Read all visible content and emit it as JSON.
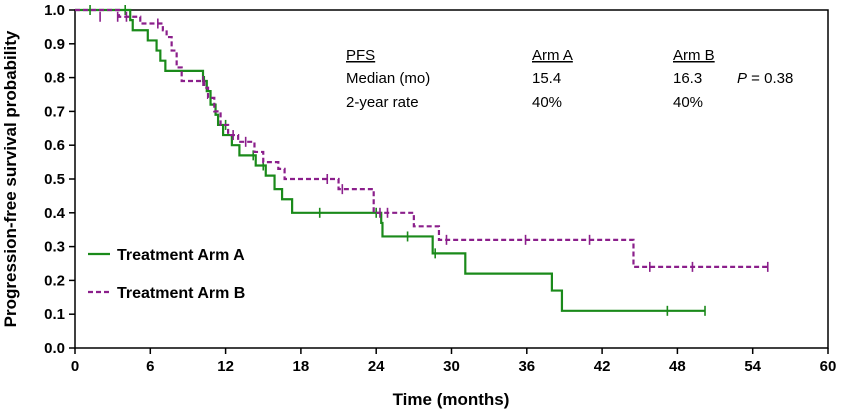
{
  "chart_data": {
    "type": "line",
    "title": "",
    "xlabel": "Time (months)",
    "ylabel": "Progression-free survival probability",
    "xlim": [
      0,
      60
    ],
    "ylim": [
      0,
      1
    ],
    "x_ticks": [
      0,
      6,
      12,
      18,
      24,
      30,
      36,
      42,
      48,
      54,
      60
    ],
    "y_ticks": [
      "0.0",
      "0.1",
      "0.2",
      "0.3",
      "0.4",
      "0.5",
      "0.6",
      "0.7",
      "0.8",
      "0.9",
      "1.0"
    ],
    "grid": false,
    "legend_position": "bottom-left",
    "series": [
      {
        "name": "Treatment Arm A",
        "color": "#1a8a1a",
        "style": "solid",
        "steps": [
          [
            0,
            1.0
          ],
          [
            4.4,
            0.97
          ],
          [
            4.6,
            0.94
          ],
          [
            5.8,
            0.91
          ],
          [
            6.5,
            0.88
          ],
          [
            6.8,
            0.85
          ],
          [
            7.2,
            0.82
          ],
          [
            10.2,
            0.79
          ],
          [
            10.5,
            0.76
          ],
          [
            10.8,
            0.72
          ],
          [
            11.2,
            0.69
          ],
          [
            11.4,
            0.66
          ],
          [
            11.8,
            0.63
          ],
          [
            12.5,
            0.6
          ],
          [
            13.1,
            0.57
          ],
          [
            14.4,
            0.54
          ],
          [
            15.2,
            0.51
          ],
          [
            15.9,
            0.47
          ],
          [
            16.5,
            0.44
          ],
          [
            17.3,
            0.4
          ],
          [
            24.4,
            0.37
          ],
          [
            24.5,
            0.33
          ],
          [
            28.5,
            0.28
          ],
          [
            31.1,
            0.22
          ],
          [
            38.0,
            0.17
          ],
          [
            38.8,
            0.11
          ],
          [
            50.2,
            0.11
          ]
        ],
        "censored": [
          [
            1.2,
            1.0
          ],
          [
            4.0,
            1.0
          ],
          [
            10.3,
            0.79
          ],
          [
            12.0,
            0.66
          ],
          [
            14.2,
            0.57
          ],
          [
            15.0,
            0.54
          ],
          [
            19.5,
            0.4
          ],
          [
            24.0,
            0.4
          ],
          [
            26.5,
            0.33
          ],
          [
            28.7,
            0.28
          ],
          [
            47.2,
            0.11
          ],
          [
            50.2,
            0.11
          ]
        ]
      },
      {
        "name": "Treatment Arm B",
        "color": "#8b1f8b",
        "style": "dashed",
        "steps": [
          [
            0,
            1.0
          ],
          [
            3.5,
            0.98
          ],
          [
            5.2,
            0.96
          ],
          [
            7.0,
            0.94
          ],
          [
            7.3,
            0.92
          ],
          [
            7.7,
            0.88
          ],
          [
            8.1,
            0.83
          ],
          [
            8.5,
            0.79
          ],
          [
            10.3,
            0.77
          ],
          [
            10.6,
            0.74
          ],
          [
            11.1,
            0.7
          ],
          [
            11.6,
            0.66
          ],
          [
            12.2,
            0.63
          ],
          [
            13.0,
            0.61
          ],
          [
            14.3,
            0.58
          ],
          [
            15.0,
            0.55
          ],
          [
            16.2,
            0.53
          ],
          [
            16.7,
            0.5
          ],
          [
            21.0,
            0.47
          ],
          [
            23.8,
            0.4
          ],
          [
            27.0,
            0.36
          ],
          [
            29.0,
            0.32
          ],
          [
            44.5,
            0.24
          ],
          [
            55.2,
            0.24
          ]
        ],
        "censored": [
          [
            2.0,
            0.98
          ],
          [
            3.4,
            0.98
          ],
          [
            4.1,
            0.98
          ],
          [
            6.6,
            0.96
          ],
          [
            10.2,
            0.79
          ],
          [
            12.6,
            0.63
          ],
          [
            13.6,
            0.61
          ],
          [
            20.1,
            0.5
          ],
          [
            21.3,
            0.47
          ],
          [
            24.3,
            0.4
          ],
          [
            24.9,
            0.4
          ],
          [
            29.6,
            0.32
          ],
          [
            35.9,
            0.32
          ],
          [
            41.0,
            0.32
          ],
          [
            45.8,
            0.24
          ],
          [
            49.2,
            0.24
          ],
          [
            55.2,
            0.24
          ]
        ]
      }
    ],
    "annotation": {
      "header": [
        "PFS",
        "Arm A",
        "Arm B"
      ],
      "rows": [
        [
          "Median (mo)",
          "15.4",
          "16.3"
        ],
        [
          "2-year rate",
          "40%",
          "40%"
        ]
      ],
      "p_label": "P",
      "p_value": " = 0.38"
    }
  }
}
